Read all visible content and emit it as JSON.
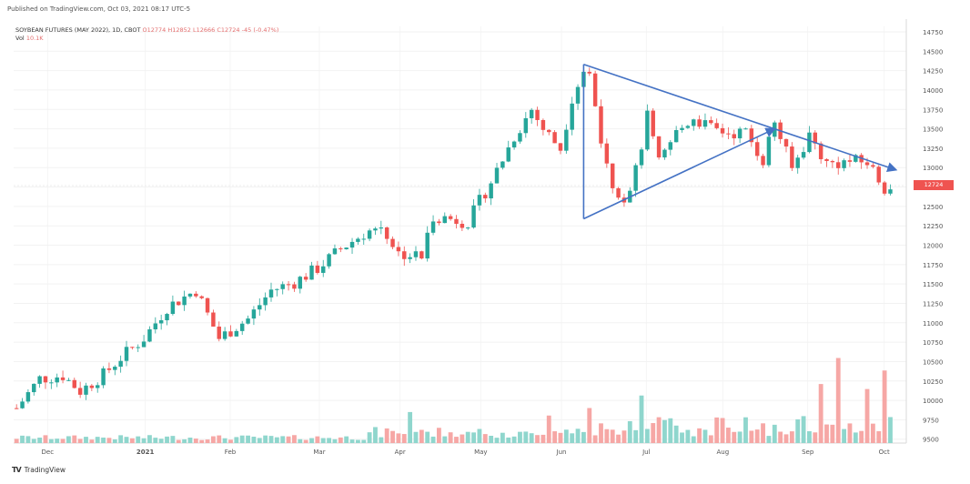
{
  "published_line": "Published on TradingView.com, Oct 03, 2021 08:17 UTC-5",
  "header": {
    "title": "SOYBEAN FUTURES (MAY 2022), 1D, CBOT",
    "ohlc": "O12774  H12852  L12666  C12724  -45 (-0.47%)",
    "vol_label": "Vol",
    "vol_value": "10.1K"
  },
  "last_price_tag": "12724",
  "footer": {
    "brand": "TradingView"
  },
  "colors": {
    "up": "#26a69a",
    "down": "#ef5350",
    "volume_up": "#8fd6cd",
    "volume_down": "#f6a7a5",
    "trendline": "#4472c4"
  },
  "chart_data": {
    "type": "candlestick",
    "symbol": "SOYBEAN FUTURES (MAY 2022)",
    "timeframe": "1D",
    "exchange": "CBOT",
    "x_ticks": [
      "Dec",
      "2021",
      "Feb",
      "Mar",
      "Apr",
      "May",
      "Jun",
      "Jul",
      "Aug",
      "Sep",
      "Oct"
    ],
    "y_ticks": [
      "14750",
      "14500",
      "14250",
      "14000",
      "13750",
      "13500",
      "13250",
      "13000",
      "12750",
      "12500",
      "12250",
      "12000",
      "11750",
      "11500",
      "11250",
      "11000",
      "10750",
      "10500",
      "10250",
      "10000",
      "9750",
      "9500"
    ],
    "ylim": [
      9450,
      14820
    ],
    "price_path": [
      [
        0,
        9900
      ],
      [
        4,
        10280
      ],
      [
        8,
        10320
      ],
      [
        11,
        10120
      ],
      [
        15,
        10330
      ],
      [
        18,
        10550
      ],
      [
        22,
        10800
      ],
      [
        26,
        11200
      ],
      [
        31,
        11420
      ],
      [
        35,
        10800
      ],
      [
        40,
        11050
      ],
      [
        44,
        11420
      ],
      [
        48,
        11520
      ],
      [
        52,
        11700
      ],
      [
        56,
        11950
      ],
      [
        60,
        12150
      ],
      [
        63,
        12250
      ],
      [
        66,
        11900
      ],
      [
        70,
        11850
      ],
      [
        72,
        12380
      ],
      [
        78,
        12300
      ],
      [
        82,
        12820
      ],
      [
        86,
        13400
      ],
      [
        89,
        13750
      ],
      [
        91,
        13500
      ],
      [
        94,
        13250
      ],
      [
        96,
        13900
      ],
      [
        98,
        14250
      ],
      [
        99,
        14200
      ],
      [
        101,
        13400
      ],
      [
        103,
        12800
      ],
      [
        105,
        12600
      ],
      [
        107,
        12950
      ],
      [
        109,
        13650
      ],
      [
        111,
        13050
      ],
      [
        114,
        13450
      ],
      [
        117,
        13650
      ],
      [
        120,
        13500
      ],
      [
        123,
        13450
      ],
      [
        126,
        13450
      ],
      [
        129,
        13100
      ],
      [
        131,
        13600
      ],
      [
        134,
        12980
      ],
      [
        137,
        13420
      ],
      [
        140,
        13050
      ],
      [
        144,
        13080
      ],
      [
        147,
        13070
      ],
      [
        150,
        12750
      ],
      [
        151,
        12724
      ]
    ],
    "volume_spikes": [
      {
        "bar": 68,
        "value": 62
      },
      {
        "bar": 92,
        "value": 55
      },
      {
        "bar": 99,
        "value": 70
      },
      {
        "bar": 108,
        "value": 95
      },
      {
        "bar": 139,
        "value": 118
      },
      {
        "bar": 142,
        "value": 170
      },
      {
        "bar": 147,
        "value": 108
      },
      {
        "bar": 150,
        "value": 145
      }
    ],
    "annotations": [
      {
        "type": "trendline",
        "label": "",
        "from": [
          98,
          14330
        ],
        "to": [
          152,
          12970
        ],
        "arrow": true
      },
      {
        "type": "trendline",
        "label": "",
        "from": [
          98,
          14330
        ],
        "to": [
          98,
          12340
        ],
        "arrow": false
      },
      {
        "type": "trendline",
        "label": "",
        "from": [
          98,
          12340
        ],
        "to": [
          131,
          13500
        ],
        "arrow": true
      }
    ]
  }
}
